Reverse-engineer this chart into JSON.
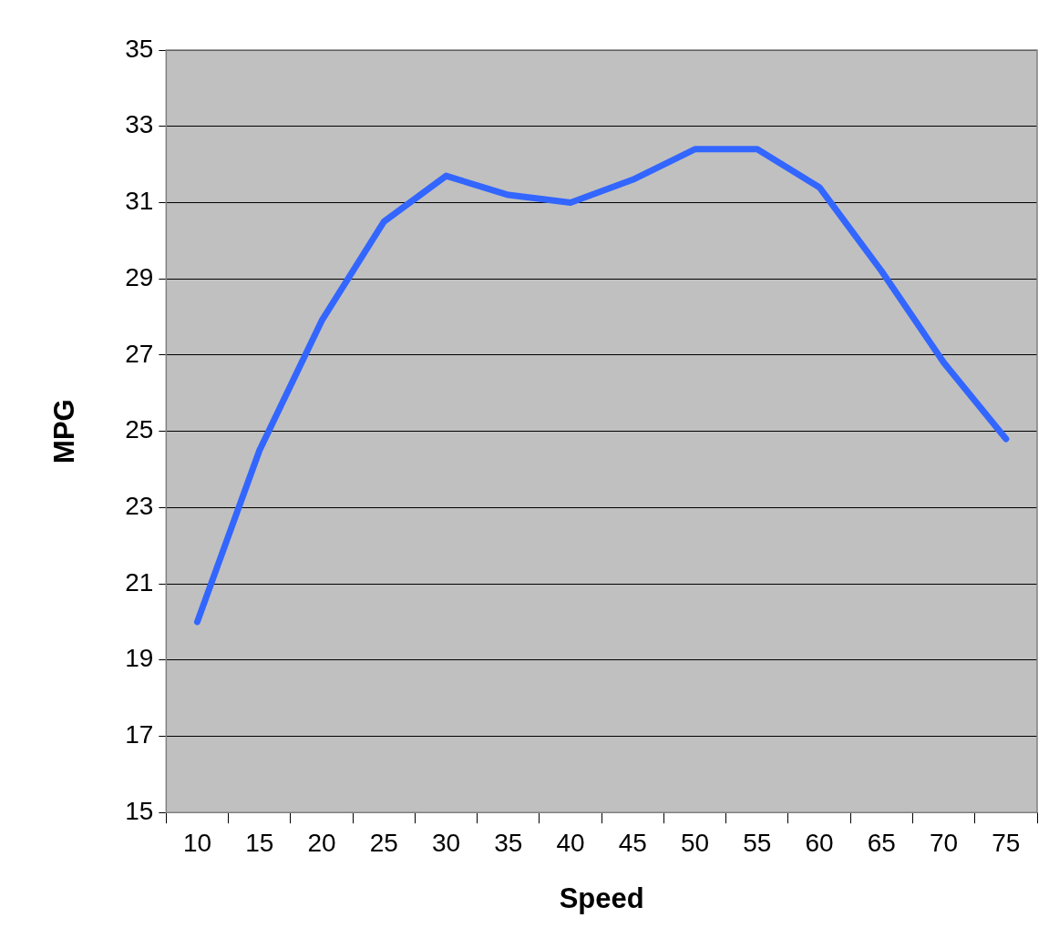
{
  "chart_data": {
    "type": "line",
    "xlabel": "Speed",
    "ylabel": "MPG",
    "categories": [
      "10",
      "15",
      "20",
      "25",
      "30",
      "35",
      "40",
      "45",
      "50",
      "55",
      "60",
      "65",
      "70",
      "75"
    ],
    "series": [
      {
        "color": "#3366ff",
        "values": [
          20.0,
          24.5,
          27.9,
          30.5,
          31.7,
          31.2,
          31.0,
          31.6,
          32.4,
          32.4,
          31.4,
          29.2,
          26.8,
          24.8
        ]
      }
    ],
    "ylim": [
      15,
      35
    ],
    "yticks": [
      15,
      17,
      19,
      21,
      23,
      25,
      27,
      29,
      31,
      33,
      35
    ],
    "grid": "y",
    "legend": false,
    "marker": "none",
    "line_style": "solid"
  }
}
